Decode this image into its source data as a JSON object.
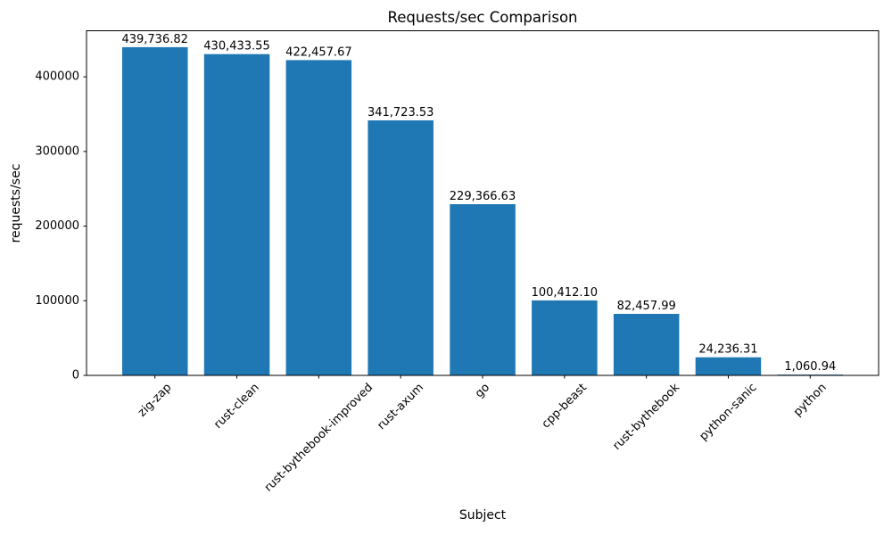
{
  "figure": {
    "background": "#ffffff"
  },
  "chart_data": {
    "type": "bar",
    "title": "Requests/sec Comparison",
    "xlabel": "Subject",
    "ylabel": "requests/sec",
    "categories": [
      "zig-zap",
      "rust-clean",
      "rust-bythebook-improved",
      "rust-axum",
      "go",
      "cpp-beast",
      "rust-bythebook",
      "python-sanic",
      "python"
    ],
    "values": [
      439736.82,
      430433.55,
      422457.67,
      341723.53,
      229366.63,
      100412.1,
      82457.99,
      24236.31,
      1060.94
    ],
    "bar_labels": [
      "439,736.82",
      "430,433.55",
      "422,457.67",
      "341,723.53",
      "229,366.63",
      "100,412.10",
      "82,457.99",
      "24,236.31",
      "1,060.94"
    ],
    "yticks": [
      0,
      100000,
      200000,
      300000,
      400000
    ],
    "ylim": [
      0,
      461724
    ],
    "xtick_rotation_deg": 45,
    "grid": false,
    "legend": "none",
    "bar_color": "#1f77b4",
    "spine_color": "#000000",
    "text_color": "#000000"
  }
}
